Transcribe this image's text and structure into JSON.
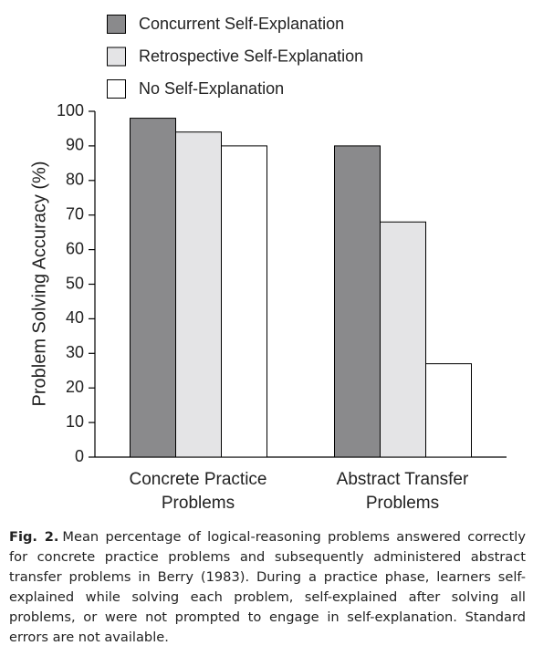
{
  "chart_data": {
    "type": "bar",
    "y_label": "Problem Solving Accuracy (%)",
    "categories": [
      "Concrete Practice Problems",
      "Abstract Transfer Problems"
    ],
    "series": [
      {
        "name": "Concurrent Self-Explanation",
        "color": "#8a8a8c",
        "values": [
          98,
          90
        ]
      },
      {
        "name": "Retrospective Self-Explanation",
        "color": "#e4e4e6",
        "values": [
          94,
          68
        ]
      },
      {
        "name": "No Self-Explanation",
        "color": "#ffffff",
        "values": [
          90,
          27
        ]
      }
    ],
    "ylim": [
      0,
      100
    ],
    "yticks": [
      0,
      10,
      20,
      30,
      40,
      50,
      60,
      70,
      80,
      90,
      100
    ],
    "grid": false
  },
  "caption": {
    "label": "Fig. 2.",
    "text": "Mean percentage of logical-reasoning problems answered correctly for concrete practice problems and subsequently administered abstract transfer problems in Berry (1983). During a practice phase, learners self-explained while solving each problem, self-explained after solving all problems, or were not prompted to engage in self-explanation. Standard errors are not available."
  }
}
